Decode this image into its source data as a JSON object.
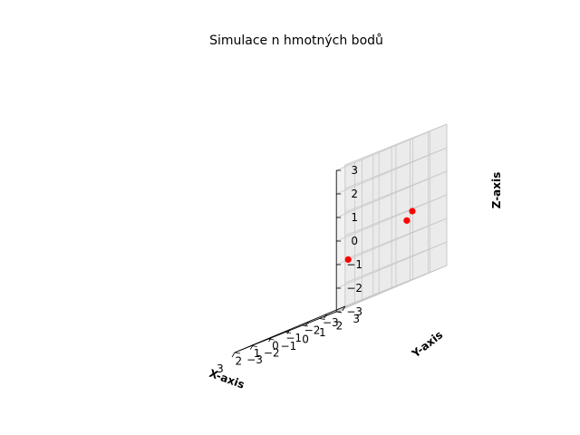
{
  "chart_data": {
    "type": "scatter",
    "projection": "3d",
    "title": "Simulace n hmotných bodů",
    "xlabel": "X-axis",
    "ylabel": "Y-axis",
    "zlabel": "Z-axis",
    "xlim": [
      -3,
      3
    ],
    "ylim": [
      -3,
      3
    ],
    "zlim": [
      -3,
      3
    ],
    "xticks": [
      "−3",
      "−2",
      "−1",
      "0",
      "1",
      "2",
      "3"
    ],
    "yticks": [
      "−3",
      "−2",
      "−1",
      "0",
      "1",
      "2",
      "3"
    ],
    "zticks": [
      "−3",
      "−2",
      "−1",
      "0",
      "1",
      "2",
      "3"
    ],
    "grid": true,
    "color": "#ff0000",
    "points": [
      {
        "x": -2.6,
        "y": 1.4,
        "z": -0.1
      },
      {
        "x": -2.3,
        "y": 1.4,
        "z": -0.4
      },
      {
        "x": 1.9,
        "y": 2.5,
        "z": -1.0
      }
    ]
  }
}
